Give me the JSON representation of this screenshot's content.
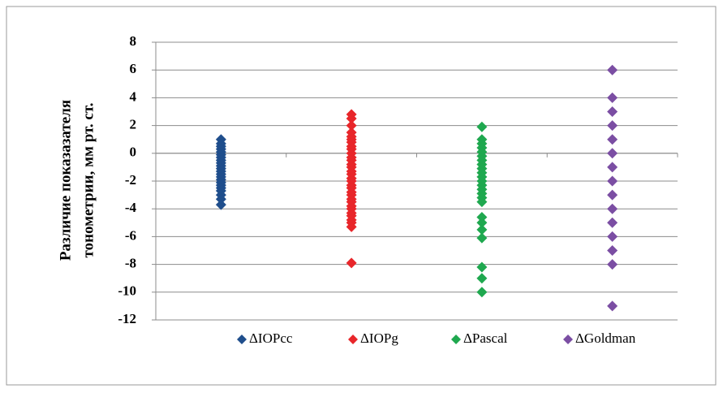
{
  "chart_data": {
    "type": "strip",
    "ylabel": [
      "Различие показазателя",
      "тонометрии, мм рт. ст."
    ],
    "ylim": [
      -12,
      8
    ],
    "yticks": [
      -12,
      -10,
      -8,
      -6,
      -4,
      -2,
      0,
      2,
      4,
      6,
      8
    ],
    "grid": true,
    "series": [
      {
        "name": "ΔIOPcc",
        "color": "#1f4e8c",
        "values": [
          1.0,
          0.7,
          0.5,
          0.3,
          0.1,
          -0.1,
          -0.3,
          -0.5,
          -0.7,
          -0.9,
          -1.1,
          -1.3,
          -1.5,
          -1.7,
          -1.9,
          -2.1,
          -2.3,
          -2.5,
          -2.7,
          -3.0,
          -3.3,
          -3.7
        ]
      },
      {
        "name": "ΔIOPg",
        "color": "#e8262a",
        "values": [
          2.8,
          2.5,
          2.0,
          1.5,
          1.2,
          1.0,
          0.8,
          0.5,
          0.3,
          0,
          -0.3,
          -0.5,
          -0.8,
          -1.0,
          -1.3,
          -1.5,
          -1.8,
          -2.0,
          -2.3,
          -2.5,
          -2.8,
          -3.0,
          -3.3,
          -3.5,
          -3.8,
          -4.0,
          -4.3,
          -4.5,
          -4.8,
          -5.0,
          -5.3,
          -7.9
        ]
      },
      {
        "name": "ΔPascal",
        "color": "#1fa84f",
        "values": [
          1.9,
          1.0,
          0.7,
          0.4,
          0.1,
          -0.2,
          -0.5,
          -0.8,
          -1.1,
          -1.4,
          -1.7,
          -2.0,
          -2.3,
          -2.6,
          -2.9,
          -3.2,
          -3.5,
          -4.6,
          -5.0,
          -5.5,
          -6.1,
          -8.2,
          -9.0,
          -10.0
        ]
      },
      {
        "name": "ΔGoldman",
        "color": "#7b4ea3",
        "values": [
          6,
          4,
          3,
          2,
          1,
          0,
          -1,
          -2,
          -3,
          -4,
          -5,
          -6,
          -7,
          -8,
          -11
        ]
      }
    ]
  }
}
